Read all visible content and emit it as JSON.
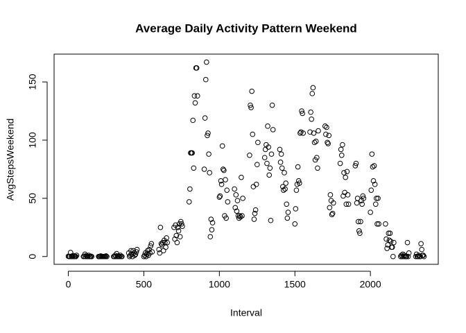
{
  "chart_data": {
    "type": "scatter",
    "title": "Average Daily Activity Pattern Weekend",
    "x_label": "Interval",
    "y_label": "AvgStepsWeekend",
    "xlim": [
      -94.2,
      2449.2
    ],
    "ylim": [
      -6.7,
      173.9
    ],
    "xticks": [
      0,
      500,
      1000,
      1500,
      2000
    ],
    "yticks": [
      0,
      50,
      100,
      150
    ],
    "color": "#000000",
    "x": [
      0,
      5,
      10,
      15,
      20,
      25,
      30,
      35,
      40,
      45,
      50,
      55,
      100,
      105,
      110,
      115,
      120,
      125,
      130,
      135,
      140,
      145,
      150,
      155,
      200,
      205,
      210,
      215,
      220,
      225,
      230,
      235,
      240,
      245,
      250,
      255,
      300,
      305,
      310,
      315,
      320,
      325,
      330,
      335,
      340,
      345,
      350,
      355,
      400,
      405,
      410,
      415,
      420,
      425,
      430,
      435,
      440,
      445,
      450,
      455,
      500,
      505,
      510,
      515,
      520,
      525,
      530,
      535,
      540,
      545,
      550,
      555,
      600,
      605,
      610,
      615,
      620,
      625,
      630,
      635,
      640,
      645,
      650,
      655,
      700,
      705,
      710,
      715,
      720,
      725,
      730,
      735,
      740,
      745,
      750,
      755,
      800,
      805,
      810,
      815,
      820,
      825,
      830,
      835,
      840,
      845,
      850,
      855,
      900,
      905,
      910,
      915,
      920,
      925,
      930,
      935,
      940,
      945,
      950,
      955,
      1000,
      1005,
      1010,
      1015,
      1020,
      1025,
      1030,
      1035,
      1040,
      1045,
      1050,
      1055,
      1100,
      1105,
      1110,
      1115,
      1120,
      1125,
      1130,
      1135,
      1140,
      1145,
      1150,
      1155,
      1200,
      1205,
      1210,
      1215,
      1220,
      1225,
      1230,
      1235,
      1240,
      1245,
      1250,
      1255,
      1300,
      1305,
      1310,
      1315,
      1320,
      1325,
      1330,
      1335,
      1340,
      1345,
      1350,
      1355,
      1400,
      1405,
      1410,
      1415,
      1420,
      1425,
      1430,
      1435,
      1440,
      1445,
      1450,
      1455,
      1500,
      1505,
      1510,
      1515,
      1520,
      1525,
      1530,
      1535,
      1540,
      1545,
      1550,
      1555,
      1600,
      1605,
      1610,
      1615,
      1620,
      1625,
      1630,
      1635,
      1640,
      1645,
      1650,
      1655,
      1700,
      1705,
      1710,
      1715,
      1720,
      1725,
      1730,
      1735,
      1740,
      1745,
      1750,
      1755,
      1800,
      1805,
      1810,
      1815,
      1820,
      1825,
      1830,
      1835,
      1840,
      1845,
      1850,
      1855,
      1900,
      1905,
      1910,
      1915,
      1920,
      1925,
      1930,
      1935,
      1940,
      1945,
      1950,
      1955,
      2000,
      2005,
      2010,
      2015,
      2020,
      2025,
      2030,
      2035,
      2040,
      2045,
      2050,
      2055,
      2100,
      2105,
      2110,
      2115,
      2120,
      2125,
      2130,
      2135,
      2140,
      2145,
      2150,
      2155,
      2200,
      2205,
      2210,
      2215,
      2220,
      2225,
      2230,
      2235,
      2240,
      2245,
      2250,
      2255,
      2300,
      2305,
      2310,
      2315,
      2320,
      2325,
      2330,
      2335,
      2340,
      2345,
      2350,
      2355
    ],
    "values": [
      0.2,
      0,
      0,
      3.5,
      0,
      0.5,
      0,
      0.8,
      0,
      0,
      0,
      1,
      0,
      0.3,
      2,
      0,
      0.8,
      0,
      0,
      1,
      0,
      0,
      0.3,
      0,
      0,
      0,
      0,
      0.5,
      0,
      0,
      0,
      0,
      0,
      0,
      0.5,
      0,
      0,
      0,
      1,
      0,
      2.5,
      0,
      0.5,
      0,
      0,
      1,
      0,
      0,
      3,
      0,
      1,
      5,
      2,
      0,
      5,
      3,
      1,
      2,
      4,
      6,
      0,
      1,
      3,
      0,
      2,
      5,
      1,
      6,
      3,
      9,
      11,
      4,
      6,
      3,
      25,
      11,
      10,
      12,
      5,
      14,
      12,
      8,
      16,
      12,
      25,
      15,
      27,
      18,
      12,
      25,
      22,
      28,
      17,
      30,
      28,
      26,
      47,
      58,
      89,
      89,
      89,
      117,
      76,
      138,
      132,
      162,
      162,
      138,
      75,
      119,
      152,
      167,
      104,
      106,
      88,
      72,
      17,
      32,
      23,
      29,
      51,
      52,
      65,
      62,
      95,
      75,
      74,
      35,
      66,
      33,
      57,
      47,
      58,
      42,
      53,
      39,
      48,
      35,
      33,
      35,
      34,
      68,
      35,
      50,
      87,
      130,
      128,
      142,
      105,
      60,
      32,
      37,
      40,
      62,
      79,
      98,
      85,
      92,
      96,
      80,
      112,
      94,
      70,
      76,
      31,
      88,
      130,
      109,
      92,
      81,
      88,
      76,
      60,
      57,
      72,
      58,
      63,
      45,
      33,
      38,
      28,
      41,
      57,
      62,
      77,
      65,
      63,
      106,
      107,
      125,
      123,
      106,
      107,
      124,
      118,
      140,
      145,
      106,
      98,
      83,
      99,
      85,
      76,
      108,
      112,
      105,
      111,
      98,
      97,
      104,
      42,
      53,
      48,
      36,
      37,
      46,
      80,
      92,
      87,
      96,
      52,
      72,
      55,
      68,
      45,
      73,
      53,
      45,
      78,
      80,
      46,
      50,
      30,
      22,
      20,
      30,
      48,
      45,
      52,
      50,
      38,
      57,
      88,
      77,
      65,
      78,
      62,
      45,
      50,
      28,
      50,
      28,
      28,
      15,
      7,
      10,
      20,
      14,
      20,
      13,
      8,
      8,
      0,
      12,
      0,
      1,
      0,
      2,
      0,
      1,
      0,
      0,
      0,
      12,
      0,
      3,
      0,
      2,
      0,
      0,
      1,
      0,
      0,
      11,
      6,
      1,
      1,
      0
    ]
  }
}
